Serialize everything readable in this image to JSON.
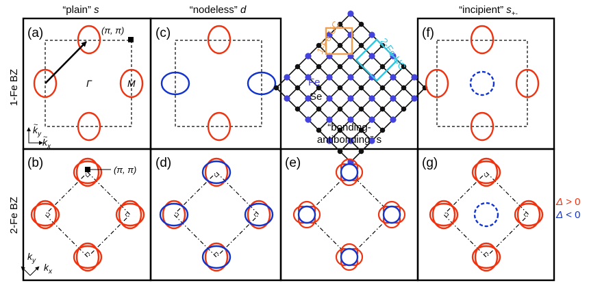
{
  "column_headers": {
    "plain": {
      "quote": "“plain”",
      "sym": "s"
    },
    "nodeless": {
      "quote": "“nodeless”",
      "sym": "d"
    },
    "incipient": {
      "quote": "“incipient”",
      "sym": "s",
      "sub": "+-"
    }
  },
  "row_labels": {
    "top": "1-Fe BZ",
    "bottom": "2-Fe BZ"
  },
  "panels": {
    "a": "(a)",
    "b": "(b)",
    "c": "(c)",
    "d": "(d)",
    "e": "(e)",
    "f": "(f)",
    "g": "(g)"
  },
  "point_labels": {
    "gamma": "Γ",
    "m": "M",
    "pi_pi": "(π, π)"
  },
  "axis_labels": {
    "ky": "k",
    "ky_sub": "y",
    "kx": "k",
    "kx_sub": "x"
  },
  "lattice": {
    "uc1": "1-Fe UC",
    "uc2": "2-Fe UC",
    "fe": "Fe",
    "se": "Se"
  },
  "bonding_label": {
    "line1": "“bonding-",
    "line2": "antibonding” s"
  },
  "legend": {
    "sym": "Δ",
    "pos": "> 0",
    "neg": "< 0"
  },
  "colors": {
    "positive": "#ee3311",
    "negative": "#1133cc",
    "uc1": "#f0a050",
    "uc2": "#33c4e0",
    "fe": "#4444dd",
    "se": "#111111"
  }
}
